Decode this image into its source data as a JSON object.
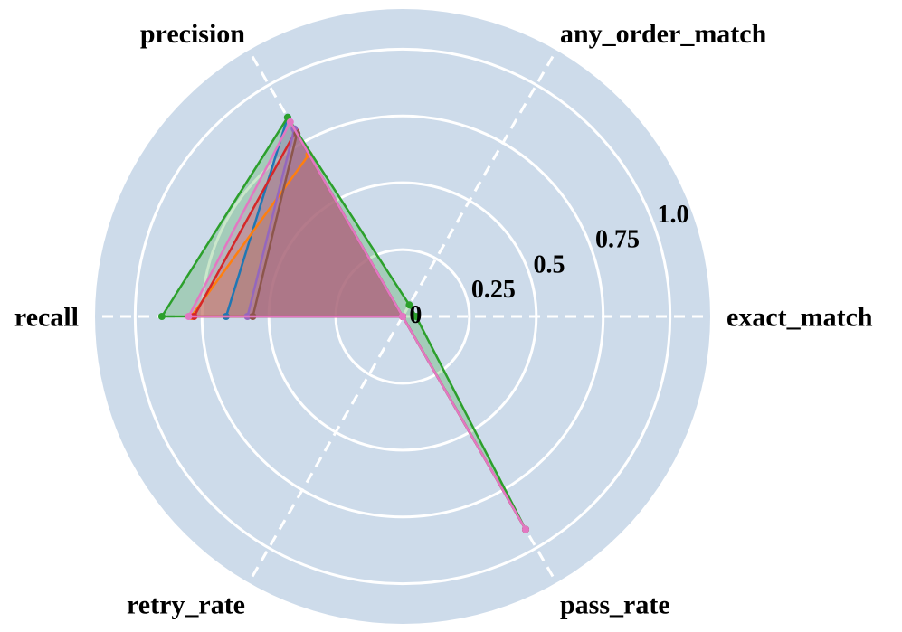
{
  "chart_data": {
    "type": "radar",
    "axes": [
      "exact_match",
      "any_order_match",
      "precision",
      "recall",
      "retry_rate",
      "pass_rate"
    ],
    "radial_ticks": [
      "0",
      "0.25",
      "0.5",
      "0.75",
      "1.0"
    ],
    "radial_tick_values": [
      0,
      0.25,
      0.5,
      0.75,
      1.0
    ],
    "rlim": [
      0,
      1.15
    ],
    "grid": true,
    "background_color": "#cddbea",
    "series": [
      {
        "color": "#1f77b4",
        "values": [
          0,
          0,
          0.86,
          0.66,
          0,
          0.92
        ]
      },
      {
        "color": "#ff7f0e",
        "values": [
          0,
          0,
          0.7,
          0.79,
          0,
          0.92
        ]
      },
      {
        "color": "#2ca02c",
        "values": [
          0.05,
          0.05,
          0.86,
          0.9,
          0,
          0.92
        ]
      },
      {
        "color": "#d62728",
        "values": [
          0,
          0,
          0.8,
          0.78,
          0,
          0.92
        ]
      },
      {
        "color": "#9467bd",
        "values": [
          0,
          0,
          0.81,
          0.58,
          0,
          0.92
        ]
      },
      {
        "color": "#8c564b",
        "values": [
          0,
          0,
          0.79,
          0.56,
          0,
          0.92
        ]
      },
      {
        "color": "#e377c2",
        "values": [
          0,
          0,
          0.84,
          0.8,
          0,
          0.92
        ]
      }
    ]
  }
}
